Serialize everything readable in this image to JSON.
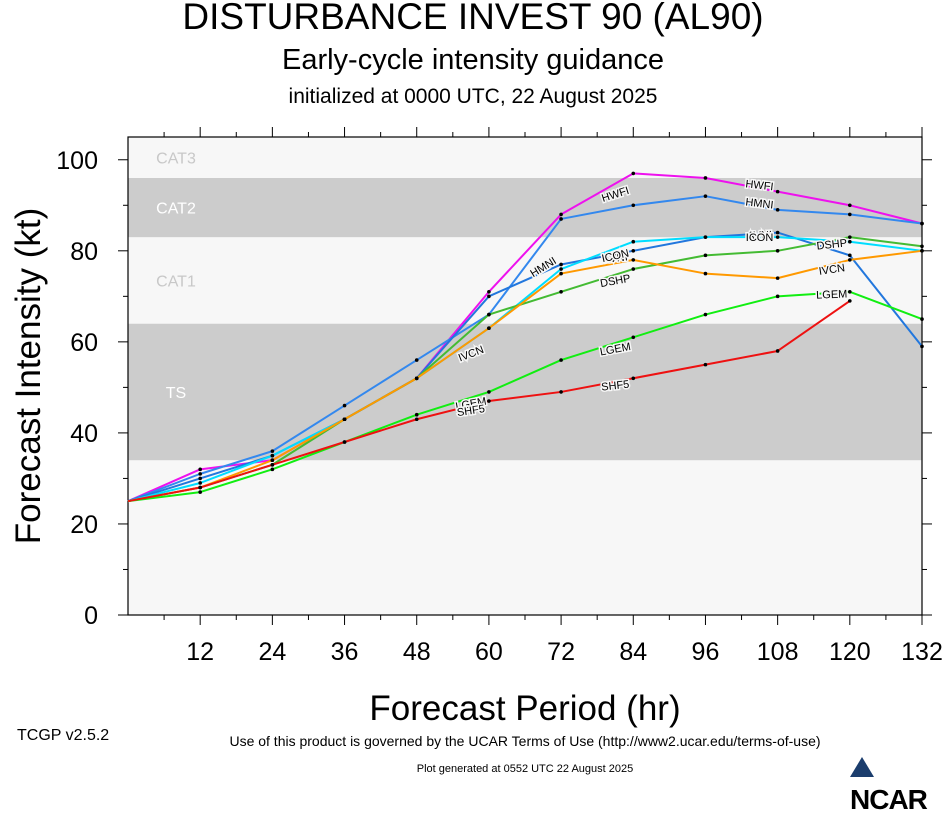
{
  "header": {
    "title": "DISTURBANCE INVEST 90 (AL90)",
    "subtitle": "Early-cycle intensity guidance",
    "init": "initialized at 0000 UTC, 22 August 2025"
  },
  "footer": {
    "version": "TCGP v2.5.2",
    "terms": "Use of this product is governed by the UCAR Terms of Use (http://www2.ucar.edu/terms-of-use)",
    "generated": "Plot generated at 0552 UTC   22 August 2025",
    "logo": "NCAR"
  },
  "chart_data": {
    "type": "line",
    "title": "DISTURBANCE INVEST 90 (AL90)",
    "xlabel": "Forecast Period (hr)",
    "ylabel": "Forecast Intensity (kt)",
    "xlim": [
      0,
      132
    ],
    "ylim": [
      0,
      105
    ],
    "xticks": [
      12,
      24,
      36,
      48,
      60,
      72,
      84,
      96,
      108,
      120,
      132
    ],
    "yticks": [
      0,
      20,
      40,
      60,
      80,
      100
    ],
    "category_bands": [
      {
        "label": "TS",
        "from": 34,
        "to": 64,
        "shade": "#cccccc"
      },
      {
        "label": "CAT1",
        "from": 64,
        "to": 83,
        "shade": "#f7f7f7"
      },
      {
        "label": "CAT2",
        "from": 83,
        "to": 96,
        "shade": "#cccccc"
      },
      {
        "label": "CAT3",
        "from": 96,
        "to": 105,
        "shade": "#f7f7f7"
      }
    ],
    "background_shade": "#f7f7f7",
    "series": [
      {
        "name": "HWFI",
        "color": "#ee11ee",
        "points": [
          [
            0,
            25
          ],
          [
            12,
            32
          ],
          [
            24,
            34
          ],
          [
            36,
            43
          ],
          [
            48,
            52
          ],
          [
            60,
            71
          ],
          [
            72,
            88
          ],
          [
            84,
            97
          ],
          [
            96,
            96
          ],
          [
            108,
            93
          ],
          [
            120,
            90
          ],
          [
            132,
            86
          ]
        ],
        "labels": [
          [
            84,
            "HWFI"
          ],
          [
            108,
            "HWFI"
          ]
        ]
      },
      {
        "name": "HMNI",
        "color": "#3388ee",
        "points": [
          [
            0,
            25
          ],
          [
            12,
            31
          ],
          [
            24,
            36
          ],
          [
            36,
            46
          ],
          [
            48,
            56
          ],
          [
            60,
            66
          ],
          [
            72,
            87
          ],
          [
            84,
            90
          ],
          [
            96,
            92
          ],
          [
            108,
            89
          ],
          [
            120,
            88
          ],
          [
            132,
            86
          ]
        ],
        "labels": [
          [
            72,
            "HMNI"
          ],
          [
            108,
            "HMNI"
          ]
        ]
      },
      {
        "name": "AVNI",
        "color": "#2277dd",
        "points": [
          [
            0,
            25
          ],
          [
            12,
            30
          ],
          [
            24,
            35
          ],
          [
            36,
            43
          ],
          [
            48,
            52
          ],
          [
            60,
            70
          ],
          [
            72,
            77
          ],
          [
            84,
            80
          ],
          [
            96,
            83
          ],
          [
            108,
            84
          ],
          [
            120,
            79
          ],
          [
            132,
            59
          ]
        ],
        "labels": [
          [
            84,
            "AVNI"
          ],
          [
            108,
            "AVNI"
          ]
        ]
      },
      {
        "name": "ICON",
        "color": "#00ddff",
        "points": [
          [
            0,
            25
          ],
          [
            12,
            29
          ],
          [
            24,
            35
          ],
          [
            36,
            43
          ],
          [
            48,
            52
          ],
          [
            60,
            63
          ],
          [
            72,
            76
          ],
          [
            84,
            82
          ],
          [
            96,
            83
          ],
          [
            108,
            83
          ],
          [
            120,
            82
          ],
          [
            132,
            80
          ]
        ],
        "labels": [
          [
            84,
            "ICON"
          ],
          [
            108,
            "ICON"
          ]
        ]
      },
      {
        "name": "DSHP",
        "color": "#44bb33",
        "points": [
          [
            0,
            25
          ],
          [
            12,
            28
          ],
          [
            24,
            33
          ],
          [
            36,
            43
          ],
          [
            48,
            52
          ],
          [
            60,
            66
          ],
          [
            72,
            71
          ],
          [
            84,
            76
          ],
          [
            96,
            79
          ],
          [
            108,
            80
          ],
          [
            120,
            83
          ],
          [
            132,
            81
          ]
        ],
        "labels": [
          [
            84,
            "DSHP"
          ],
          [
            120,
            "DSHP"
          ]
        ]
      },
      {
        "name": "IVCN",
        "color": "#ff9900",
        "points": [
          [
            0,
            25
          ],
          [
            12,
            28
          ],
          [
            24,
            34
          ],
          [
            36,
            43
          ],
          [
            48,
            52
          ],
          [
            60,
            63
          ],
          [
            72,
            75
          ],
          [
            84,
            78
          ],
          [
            96,
            75
          ],
          [
            108,
            74
          ],
          [
            120,
            78
          ],
          [
            132,
            80
          ]
        ],
        "labels": [
          [
            60,
            "IVCN"
          ],
          [
            120,
            "IVCN"
          ]
        ]
      },
      {
        "name": "LGEM",
        "color": "#11ee11",
        "points": [
          [
            0,
            25
          ],
          [
            12,
            27
          ],
          [
            24,
            32
          ],
          [
            36,
            38
          ],
          [
            48,
            44
          ],
          [
            60,
            49
          ],
          [
            72,
            56
          ],
          [
            84,
            61
          ],
          [
            96,
            66
          ],
          [
            108,
            70
          ],
          [
            120,
            71
          ],
          [
            132,
            65
          ]
        ],
        "labels": [
          [
            60,
            "LGEM"
          ],
          [
            84,
            "LGEM"
          ],
          [
            120,
            "LGEM"
          ]
        ]
      },
      {
        "name": "SHF5",
        "color": "#ee1111",
        "points": [
          [
            0,
            25
          ],
          [
            12,
            28
          ],
          [
            24,
            33
          ],
          [
            36,
            38
          ],
          [
            48,
            43
          ],
          [
            60,
            47
          ],
          [
            72,
            49
          ],
          [
            84,
            52
          ],
          [
            96,
            55
          ],
          [
            108,
            58
          ],
          [
            120,
            69
          ]
        ],
        "labels": [
          [
            60,
            "SHF5"
          ],
          [
            84,
            "SHF5"
          ]
        ]
      }
    ]
  }
}
